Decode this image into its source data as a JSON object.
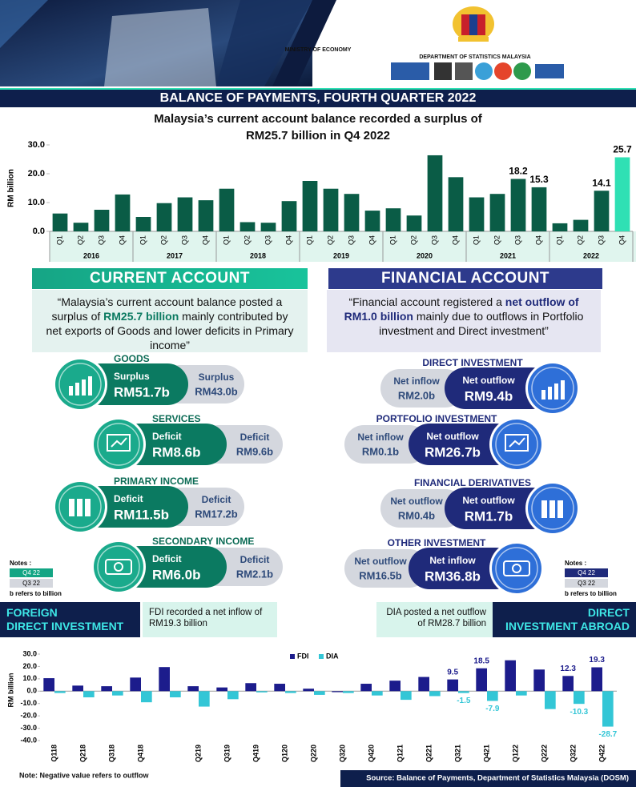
{
  "header": {
    "ministry": "MINISTRY OF ECONOMY",
    "department": "DEPARTMENT OF STATISTICS MALAYSIA",
    "banner": "BALANCE OF PAYMENTS, FOURTH QUARTER 2022"
  },
  "chart_data": [
    {
      "type": "bar",
      "title": [
        "Malaysia’s current account balance recorded a surplus of",
        "RM25.7 billion in Q4 2022"
      ],
      "y_label": "RM billion",
      "categories": [
        "Q1",
        "Q2",
        "Q3",
        "Q4",
        "Q1",
        "Q2",
        "Q3",
        "Q4",
        "Q1",
        "Q2",
        "Q3",
        "Q4",
        "Q1",
        "Q2",
        "Q3",
        "Q4",
        "Q1",
        "Q2",
        "Q3",
        "Q4",
        "Q1",
        "Q2",
        "Q3",
        "Q4",
        "Q1",
        "Q2",
        "Q3",
        "Q4"
      ],
      "years": [
        "2016",
        "2017",
        "2018",
        "2019",
        "2020",
        "2021",
        "2022"
      ],
      "values": [
        6.2,
        3.0,
        7.5,
        12.8,
        5.0,
        9.8,
        11.8,
        10.8,
        14.8,
        3.2,
        3.0,
        10.5,
        17.5,
        14.8,
        13.0,
        7.2,
        8.0,
        5.5,
        26.4,
        18.8,
        11.8,
        13.0,
        18.2,
        15.3,
        2.8,
        4.0,
        14.1,
        25.7
      ],
      "value_labels": [
        null,
        null,
        null,
        null,
        null,
        null,
        null,
        null,
        null,
        null,
        null,
        null,
        null,
        null,
        null,
        null,
        null,
        null,
        null,
        null,
        null,
        null,
        "18.2",
        "15.3",
        null,
        null,
        "14.1",
        "25.7"
      ],
      "colors": [
        "#0a5c46",
        "#0a5c46",
        "#0a5c46",
        "#0a5c46",
        "#0a5c46",
        "#0a5c46",
        "#0a5c46",
        "#0a5c46",
        "#0a5c46",
        "#0a5c46",
        "#0a5c46",
        "#0a5c46",
        "#0a5c46",
        "#0a5c46",
        "#0a5c46",
        "#0a5c46",
        "#0a5c46",
        "#0a5c46",
        "#0a5c46",
        "#0a5c46",
        "#0a5c46",
        "#0a5c46",
        "#0a5c46",
        "#0a5c46",
        "#0a5c46",
        "#0a5c46",
        "#0a5c46",
        "#2fe0b4"
      ],
      "ylim": [
        0,
        30
      ],
      "yticks": [
        {
          "value": 0,
          "label": "0.0"
        },
        {
          "value": 10,
          "label": "10.0"
        },
        {
          "value": 20,
          "label": "20.0"
        },
        {
          "value": 30,
          "label": "30.0"
        }
      ]
    },
    {
      "type": "grouped_bar",
      "y_label": "RM billion",
      "legend": "top",
      "categories": [
        "Q118",
        "Q218",
        "Q318",
        "Q418",
        null,
        "Q219",
        "Q319",
        "Q419",
        "Q120",
        "Q220",
        "Q320",
        "Q420",
        "Q121",
        "Q221",
        "Q321",
        "Q421",
        "Q122",
        "Q222",
        "Q322",
        "Q422"
      ],
      "series": [
        {
          "name": "FDI",
          "color": "#1c1c8c",
          "values": [
            10.5,
            4.5,
            4.0,
            11.0,
            19.5,
            4.0,
            3.0,
            6.5,
            6.0,
            2.0,
            -0.8,
            6.0,
            8.5,
            11.5,
            9.5,
            18.5,
            25.0,
            17.5,
            12.3,
            19.3
          ],
          "value_labels": [
            null,
            null,
            null,
            null,
            null,
            null,
            null,
            null,
            null,
            null,
            null,
            null,
            null,
            null,
            "9.5",
            "18.5",
            null,
            null,
            "12.3",
            "19.3"
          ]
        },
        {
          "name": "DIA",
          "color": "#33c6d6",
          "values": [
            -1.5,
            -5.0,
            -3.5,
            -9.0,
            -5.0,
            -12.5,
            -6.5,
            -1.0,
            -1.5,
            -3.0,
            -1.5,
            -3.5,
            -7.0,
            -4.0,
            -1.5,
            -7.9,
            -3.5,
            -14.5,
            -10.3,
            -28.7
          ],
          "value_labels": [
            null,
            null,
            null,
            null,
            null,
            null,
            null,
            null,
            null,
            null,
            null,
            null,
            null,
            null,
            "-1.5",
            "-7.9",
            null,
            null,
            "-10.3",
            "-28.7"
          ]
        }
      ],
      "ylim": [
        -40,
        30
      ],
      "yticks": [
        {
          "value": -40,
          "label": "-40.0"
        },
        {
          "value": -30,
          "label": "-30.0"
        },
        {
          "value": -20,
          "label": "-20.0"
        },
        {
          "value": -10,
          "label": "-10.0"
        },
        {
          "value": 0,
          "label": "0.0"
        },
        {
          "value": 10,
          "label": "10.0"
        },
        {
          "value": 20,
          "label": "20.0"
        },
        {
          "value": 30,
          "label": "30.0"
        }
      ]
    }
  ],
  "current_account": {
    "heading": "CURRENT ACCOUNT",
    "description": [
      "“Malaysia’s current account balance posted a surplus of ",
      "RM25.7 billion",
      " mainly contributed by net exports of Goods and lower deficits in Primary income”"
    ],
    "items": [
      {
        "title": "GOODS",
        "q4": {
          "status": "Surplus",
          "amount": "RM51.7b"
        },
        "q3": {
          "status": "Surplus",
          "amount": "RM43.0b"
        }
      },
      {
        "title": "SERVICES",
        "q4": {
          "status": "Deficit",
          "amount": "RM8.6b"
        },
        "q3": {
          "status": "Deficit",
          "amount": "RM9.6b"
        }
      },
      {
        "title": "PRIMARY INCOME",
        "q4": {
          "status": "Deficit",
          "amount": "RM11.5b"
        },
        "q3": {
          "status": "Deficit",
          "amount": "RM17.2b"
        }
      },
      {
        "title": "SECONDARY INCOME",
        "q4": {
          "status": "Deficit",
          "amount": "RM6.0b"
        },
        "q3": {
          "status": "Deficit",
          "amount": "RM2.1b"
        }
      }
    ]
  },
  "financial_account": {
    "heading": "FINANCIAL  ACCOUNT",
    "description": [
      "“Financial account registered a ",
      "net outflow of RM1.0 billion",
      " mainly due to outflows in Portfolio investment and Direct investment”"
    ],
    "items": [
      {
        "title": "DIRECT INVESTMENT",
        "q4": {
          "status": "Net outflow",
          "amount": "RM9.4b"
        },
        "q3": {
          "status": "Net inflow",
          "amount": "RM2.0b"
        }
      },
      {
        "title": "PORTFOLIO INVESTMENT",
        "q4": {
          "status": "Net outflow",
          "amount": "RM26.7b"
        },
        "q3": {
          "status": "Net inflow",
          "amount": "RM0.1b"
        }
      },
      {
        "title": "FINANCIAL DERIVATIVES",
        "q4": {
          "status": "Net outflow",
          "amount": "RM1.7b"
        },
        "q3": {
          "status": "Net outflow",
          "amount": "RM0.4b"
        }
      },
      {
        "title": "OTHER INVESTMENT",
        "q4": {
          "status": "Net inflow",
          "amount": "RM36.8b"
        },
        "q3": {
          "status": "Net outflow",
          "amount": "RM16.5b"
        }
      }
    ]
  },
  "notes": {
    "heading": "Notes :",
    "current": "Q4 22",
    "previous": "Q3 22",
    "unit": "b refers to billion"
  },
  "fdi": {
    "heading": [
      "FOREIGN",
      "DIRECT INVESTMENT"
    ],
    "text": "FDI recorded a net inflow of RM19.3 billion"
  },
  "dia": {
    "heading": [
      "DIRECT",
      "INVESTMENT ABROAD"
    ],
    "text": "DIA posted a net outflow of RM28.7 billion"
  },
  "footer": {
    "note": "Note: Negative value refers to outflow",
    "source": "Source: Balance of Payments, Department of Statistics Malaysia (DOSM)"
  }
}
